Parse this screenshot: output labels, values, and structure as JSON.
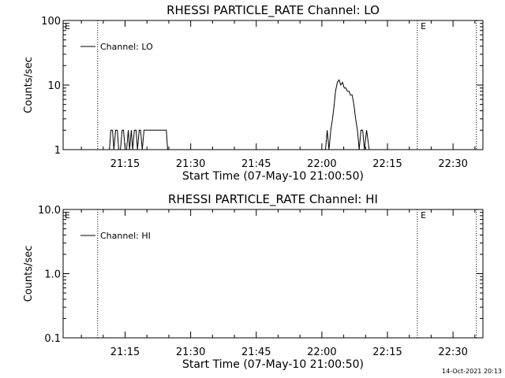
{
  "timestamp": "14-Oct-2021 20:13",
  "chart_data": [
    {
      "type": "line",
      "title": "RHESSI PARTICLE_RATE Channel: LO",
      "xlabel": "Start Time (07-May-10 21:00:50)",
      "ylabel": "Counts/sec",
      "y_scale": "log",
      "ylim": [
        1,
        100
      ],
      "y_tick_values": [
        1,
        10,
        100
      ],
      "y_tick_labels": [
        "1",
        "10",
        "100"
      ],
      "x_unit": "minutes after 21:00:50",
      "xlim": [
        0.0,
        96.0
      ],
      "x_tick_values": [
        14.17,
        29.17,
        44.17,
        59.17,
        74.17,
        89.17
      ],
      "x_tick_labels": [
        "21:15",
        "21:30",
        "21:45",
        "22:00",
        "22:15",
        "22:30"
      ],
      "grid": false,
      "legend_position": "top-left",
      "series": [
        {
          "name": "Channel: LO",
          "color": "#000000",
          "x": [
            0,
            10.6,
            10.9,
            11.3,
            11.6,
            12.0,
            12.4,
            12.7,
            13.1,
            13.5,
            13.8,
            14.2,
            14.5,
            14.9,
            15.2,
            15.6,
            15.9,
            16.3,
            16.7,
            17.0,
            17.4,
            17.7,
            18.1,
            18.5,
            18.9,
            19.4,
            20.2,
            23.6,
            23.9,
            24.5,
            60.0,
            60.4,
            60.8,
            61.2,
            61.6,
            62.0,
            62.3,
            62.7,
            63.1,
            63.5,
            63.9,
            64.3,
            64.7,
            65.0,
            65.4,
            65.7,
            66.1,
            66.5,
            66.9,
            67.3,
            67.7,
            68.1,
            68.5,
            68.9,
            69.4,
            70.0,
            96.0
          ],
          "y": [
            1,
            1,
            2,
            2,
            1,
            2,
            2,
            1,
            1,
            2,
            2,
            1,
            1,
            2,
            1,
            2,
            1,
            2,
            2,
            1,
            2,
            2,
            1,
            2,
            2,
            2,
            2,
            2,
            1,
            1,
            1,
            2,
            1,
            2,
            3,
            5,
            8,
            11,
            12,
            10,
            11,
            9,
            9,
            8,
            8,
            7,
            7,
            5,
            3,
            2,
            1,
            2,
            2,
            1,
            2,
            1,
            1
          ]
        }
      ],
      "annotations": [
        {
          "text": "E",
          "x": 0.0
        },
        {
          "text": "E",
          "x": 81.4
        }
      ],
      "vertical_markers": [
        7.9,
        81.0,
        94.5
      ]
    },
    {
      "type": "line",
      "title": "RHESSI PARTICLE_RATE Channel: HI",
      "xlabel": "Start Time (07-May-10 21:00:50)",
      "ylabel": "Counts/sec",
      "y_scale": "log",
      "ylim": [
        0.1,
        10
      ],
      "y_tick_values": [
        0.1,
        1,
        10
      ],
      "y_tick_labels": [
        "0.1",
        "1.0",
        "10.0"
      ],
      "x_unit": "minutes after 21:00:50",
      "xlim": [
        0.0,
        96.0
      ],
      "x_tick_values": [
        14.17,
        29.17,
        44.17,
        59.17,
        74.17,
        89.17
      ],
      "x_tick_labels": [
        "21:15",
        "21:30",
        "21:45",
        "22:00",
        "22:15",
        "22:30"
      ],
      "grid": false,
      "legend_position": "top-left",
      "series": [
        {
          "name": "Channel: HI",
          "color": "#000000",
          "x": [],
          "y": []
        }
      ],
      "annotations": [
        {
          "text": "E",
          "x": 0.0
        },
        {
          "text": "E",
          "x": 81.4
        }
      ],
      "vertical_markers": [
        7.9,
        81.0,
        94.5
      ]
    }
  ]
}
